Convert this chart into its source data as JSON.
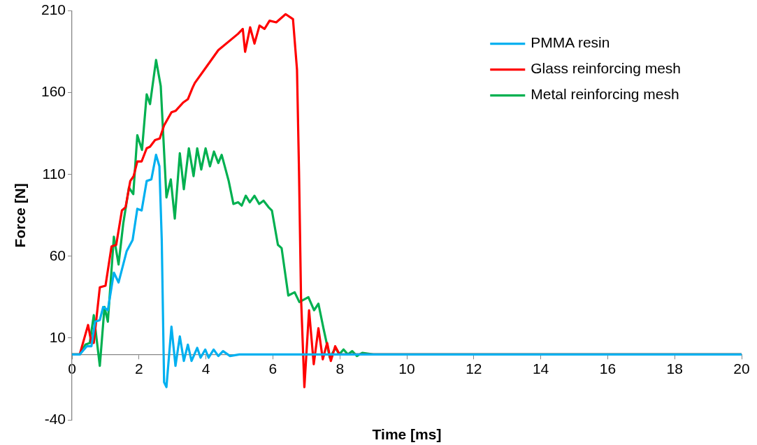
{
  "chart_data": {
    "type": "line",
    "xlabel": "Time [ms]",
    "ylabel": "Force [N]",
    "xlim": [
      0,
      20
    ],
    "xticks": [
      0,
      2,
      4,
      6,
      8,
      10,
      12,
      14,
      16,
      18,
      20
    ],
    "ylim": [
      -40,
      210
    ],
    "yticks": [
      -40,
      10,
      60,
      110,
      160,
      210
    ],
    "grid": false,
    "legend": "top right",
    "marker": "none",
    "line_style": "solid",
    "series": [
      {
        "name": "PMMA resin",
        "color": "#00b0f0",
        "x": [
          0,
          0.23,
          0.44,
          0.58,
          0.69,
          0.83,
          0.93,
          1.07,
          1.25,
          1.39,
          1.63,
          1.81,
          1.95,
          2.08,
          2.23,
          2.37,
          2.51,
          2.61,
          2.68,
          2.75,
          2.82,
          2.97,
          3.09,
          3.22,
          3.34,
          3.46,
          3.57,
          3.74,
          3.84,
          3.98,
          4.08,
          4.23,
          4.37,
          4.51,
          4.72,
          5,
          8,
          20
        ],
        "values": [
          0,
          0,
          5,
          5,
          20,
          21,
          29,
          27,
          50,
          44,
          63,
          70,
          89,
          88,
          106,
          107,
          122,
          115,
          70,
          -17,
          -20,
          17,
          -7,
          11,
          -4,
          6,
          -4,
          4,
          -2,
          3,
          -2,
          3,
          -1,
          2,
          -1,
          0,
          0,
          0
        ]
      },
      {
        "name": "Glass reinforcing mesh",
        "color": "#ff0000",
        "x": [
          0,
          0.23,
          0.48,
          0.58,
          0.65,
          0.83,
          1.0,
          1.18,
          1.32,
          1.49,
          1.6,
          1.74,
          1.84,
          1.95,
          2.08,
          2.23,
          2.33,
          2.48,
          2.62,
          2.75,
          2.97,
          3.1,
          3.32,
          3.46,
          3.6,
          3.67,
          4.02,
          4.37,
          4.96,
          5.1,
          5.17,
          5.32,
          5.45,
          5.6,
          5.75,
          5.9,
          6.1,
          6.38,
          6.6,
          6.72,
          6.78,
          6.84,
          6.94,
          7.08,
          7.22,
          7.36,
          7.49,
          7.62,
          7.73,
          7.86,
          7.99,
          20
        ],
        "values": [
          0,
          0,
          18,
          7,
          7,
          41,
          42,
          66,
          67,
          88,
          90,
          106,
          109,
          118,
          118,
          126,
          127,
          131,
          132,
          140,
          148,
          149,
          154,
          156,
          163,
          166,
          176,
          186,
          196,
          199,
          185,
          200,
          190,
          201,
          199,
          204,
          203,
          208,
          205,
          174,
          112,
          35,
          -20,
          27,
          -6,
          16,
          -3,
          7,
          -4,
          5,
          0,
          0
        ]
      },
      {
        "name": "Metal reinforcing mesh",
        "color": "#00b050",
        "x": [
          0,
          0.23,
          0.4,
          0.53,
          0.65,
          0.83,
          0.97,
          1.07,
          1.25,
          1.39,
          1.53,
          1.7,
          1.83,
          1.95,
          2.09,
          2.23,
          2.33,
          2.51,
          2.65,
          2.82,
          2.95,
          3.07,
          3.22,
          3.34,
          3.49,
          3.63,
          3.74,
          3.86,
          3.99,
          4.12,
          4.24,
          4.37,
          4.47,
          4.68,
          4.82,
          4.96,
          5.07,
          5.19,
          5.31,
          5.45,
          5.59,
          5.72,
          5.87,
          5.97,
          6.15,
          6.26,
          6.46,
          6.65,
          6.79,
          7.06,
          7.23,
          7.36,
          7.51,
          7.7,
          7.87,
          7.98,
          8.11,
          8.24,
          8.37,
          8.51,
          8.67,
          9,
          20
        ],
        "values": [
          0,
          0,
          6,
          7,
          24,
          -7,
          29,
          20,
          72,
          55,
          80,
          102,
          98,
          134,
          125,
          159,
          153,
          180,
          164,
          96,
          107,
          83,
          123,
          101,
          126,
          109,
          126,
          113,
          126,
          115,
          124,
          117,
          122,
          106,
          92,
          93,
          91,
          97,
          93,
          97,
          92,
          94,
          90,
          88,
          67,
          65,
          36,
          38,
          32,
          35,
          27,
          31,
          16,
          -2,
          4,
          0,
          3,
          0,
          2,
          -1,
          1,
          0,
          0
        ]
      }
    ]
  }
}
